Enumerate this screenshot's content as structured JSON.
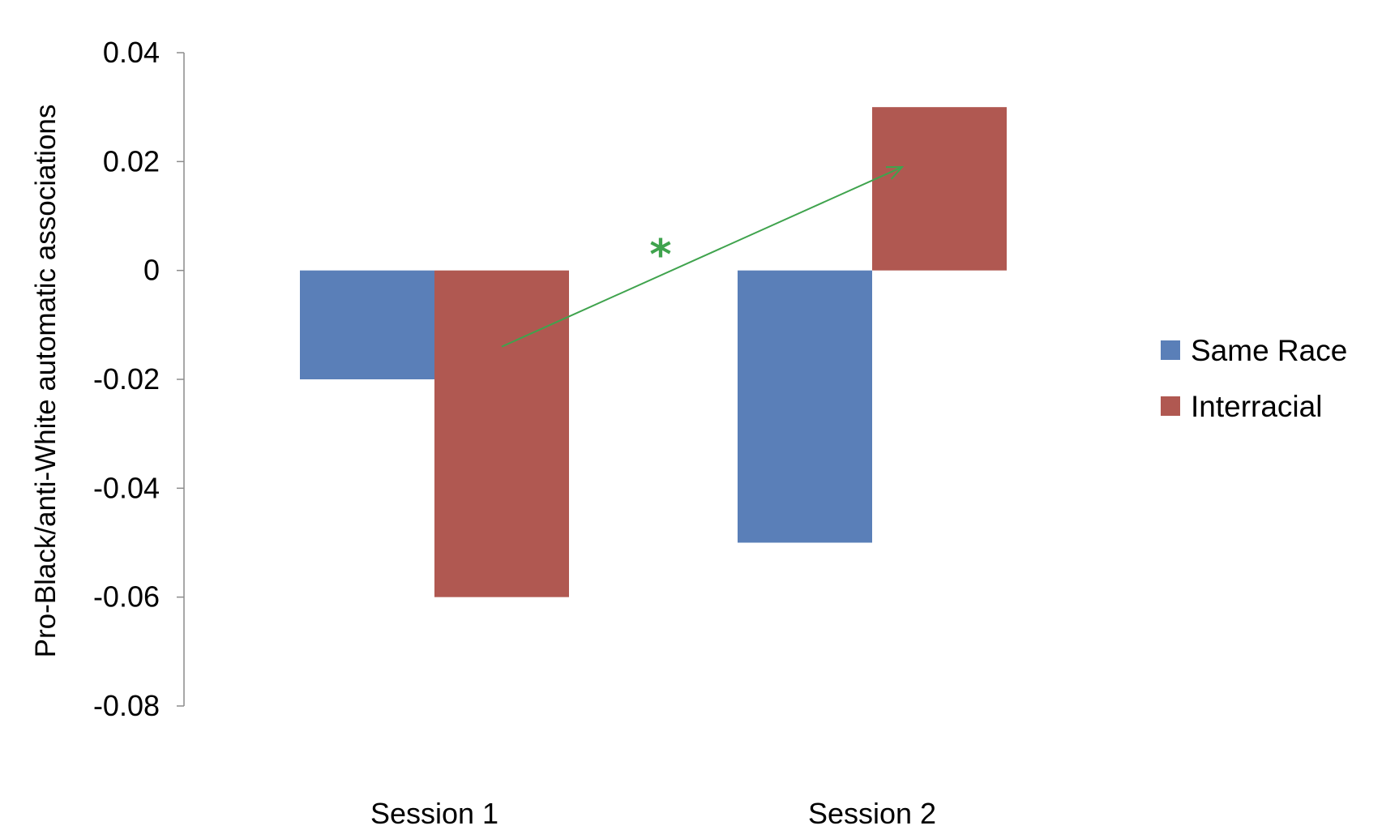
{
  "chart_data": {
    "type": "bar",
    "categories": [
      "Session 1",
      "Session 2"
    ],
    "series": [
      {
        "name": "Same Race",
        "values": [
          -0.02,
          -0.05
        ],
        "color": "#5a7fb8"
      },
      {
        "name": "Interracial",
        "values": [
          -0.06,
          0.03
        ],
        "color": "#b05851"
      }
    ],
    "ylabel": "Pro-Black/anti-White automatic associations",
    "xlabel": "",
    "title": "",
    "ylim": [
      -0.08,
      0.04
    ],
    "yticks": [
      0.04,
      0.02,
      0,
      -0.02,
      -0.04,
      -0.06,
      -0.08
    ],
    "ytick_labels": [
      "0.04",
      "0.02",
      "0",
      "-0.02",
      "-0.04",
      "-0.06",
      "-0.08"
    ],
    "grid": false,
    "legend_position": "right",
    "annotations": [
      {
        "text": "*",
        "color": "#3fa34d",
        "arrow_from": {
          "category": "Session 1",
          "series": "Interracial",
          "y": -0.014
        },
        "arrow_to": {
          "category": "Session 2",
          "series": "Interracial",
          "y": 0.019
        }
      }
    ]
  }
}
